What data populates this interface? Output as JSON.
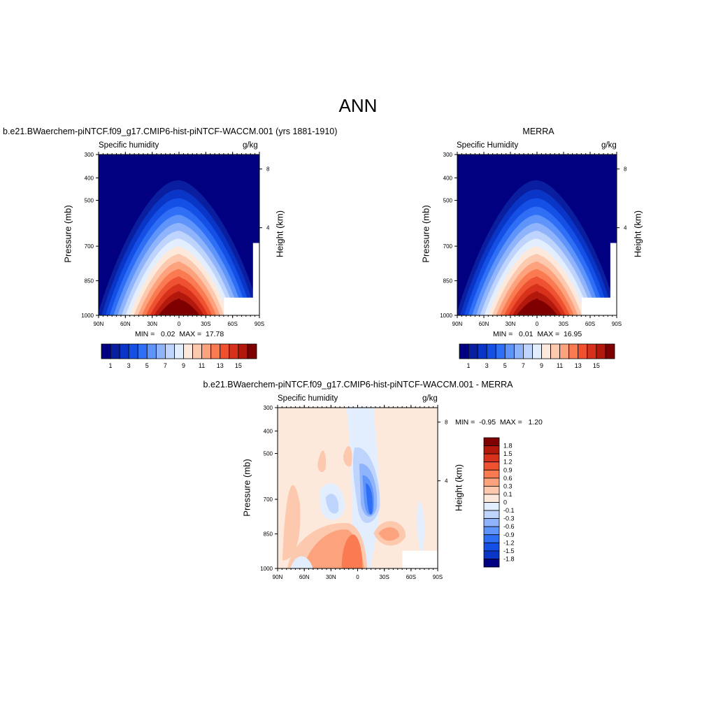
{
  "title": "ANN",
  "chart_data": [
    {
      "type": "heatmap",
      "panel_title": "b.e21.BWaerchem-piNTCF.f09_g17.CMIP6-hist-piNTCF-WACCM.001 (yrs 1881-1910)",
      "left_label": "Specific humidity",
      "right_label": "g/kg",
      "ylabel": "Pressure (mb)",
      "y2label": "Height (km)",
      "x_ticks": [
        "90N",
        "60N",
        "30N",
        "0",
        "30S",
        "60S",
        "90S"
      ],
      "y_ticks": [
        "300",
        "400",
        "500",
        "700",
        "850",
        "1000"
      ],
      "y2_ticks": [
        "8",
        "4"
      ],
      "stats": "MIN =   0.02  MAX =  17.78",
      "min": 0.02,
      "max": 17.78,
      "colorbar_labels": [
        "1",
        "3",
        "5",
        "7",
        "9",
        "11",
        "13",
        "15"
      ],
      "colorbar_levels": [
        0,
        1,
        2,
        3,
        4,
        5,
        6,
        7,
        8,
        9,
        10,
        11,
        12,
        13,
        14,
        15,
        16
      ],
      "colors": [
        "#000080",
        "#0a1fa0",
        "#0a36c8",
        "#1450e6",
        "#2f6ff5",
        "#5f94fa",
        "#8fb4fb",
        "#bed4fc",
        "#e2eefd",
        "#fde9dc",
        "#fcc9ae",
        "#fca37e",
        "#fa7a52",
        "#ef5230",
        "#d7301b",
        "#b3180d",
        "#7f0000"
      ]
    },
    {
      "type": "heatmap",
      "panel_title": "MERRA",
      "left_label": "Specific Humidity",
      "right_label": "g/kg",
      "ylabel": "Pressure (mb)",
      "y2label": "Height (km)",
      "x_ticks": [
        "90N",
        "60N",
        "30N",
        "0",
        "30S",
        "60S",
        "90S"
      ],
      "y_ticks": [
        "300",
        "400",
        "500",
        "700",
        "850",
        "1000"
      ],
      "y2_ticks": [
        "8",
        "4"
      ],
      "stats": "MIN =   0.01  MAX =  16.95",
      "min": 0.01,
      "max": 16.95,
      "colorbar_labels": [
        "1",
        "3",
        "5",
        "7",
        "9",
        "11",
        "13",
        "15"
      ],
      "colorbar_levels": [
        0,
        1,
        2,
        3,
        4,
        5,
        6,
        7,
        8,
        9,
        10,
        11,
        12,
        13,
        14,
        15,
        16
      ],
      "colors": [
        "#000080",
        "#0a1fa0",
        "#0a36c8",
        "#1450e6",
        "#2f6ff5",
        "#5f94fa",
        "#8fb4fb",
        "#bed4fc",
        "#e2eefd",
        "#fde9dc",
        "#fcc9ae",
        "#fca37e",
        "#fa7a52",
        "#ef5230",
        "#d7301b",
        "#b3180d",
        "#7f0000"
      ]
    },
    {
      "type": "heatmap",
      "panel_title": "b.e21.BWaerchem-piNTCF.f09_g17.CMIP6-hist-piNTCF-WACCM.001 - MERRA",
      "left_label": "Specific humidity",
      "right_label": "g/kg",
      "ylabel": "Pressure (mb)",
      "y2label": "Height (km)",
      "x_ticks": [
        "90N",
        "60N",
        "30N",
        "0",
        "30S",
        "60S",
        "90S"
      ],
      "y_ticks": [
        "300",
        "400",
        "500",
        "700",
        "850",
        "1000"
      ],
      "y2_ticks": [
        "8",
        "4"
      ],
      "stats": "MIN =  -0.95  MAX =   1.20",
      "min": -0.95,
      "max": 1.2,
      "colorbar_labels": [
        "1.8",
        "1.5",
        "1.2",
        "0.9",
        "0.6",
        "0.3",
        "0.1",
        "0",
        "-0.1",
        "-0.3",
        "-0.6",
        "-0.9",
        "-1.2",
        "-1.5",
        "-1.8"
      ],
      "colors": [
        "#7f0000",
        "#b3180d",
        "#d7301b",
        "#ef5230",
        "#fa7a52",
        "#fca37e",
        "#fcc9ae",
        "#fde9dc",
        "#e2eefd",
        "#bed4fc",
        "#8fb4fb",
        "#5f94fa",
        "#2f6ff5",
        "#1450e6",
        "#0a36c8",
        "#000080"
      ]
    }
  ]
}
